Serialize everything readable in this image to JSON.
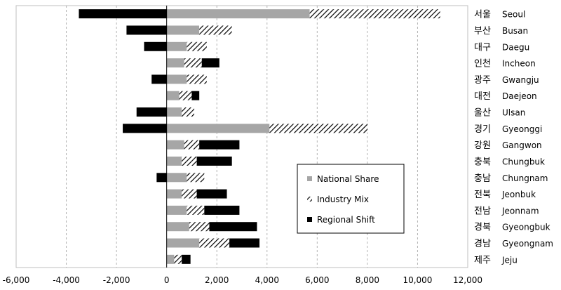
{
  "chart_data": {
    "type": "bar",
    "orientation": "horizontal",
    "stacked": true,
    "categories": [
      {
        "ko": "서울",
        "en": "Seoul"
      },
      {
        "ko": "부산",
        "en": "Busan"
      },
      {
        "ko": "대구",
        "en": "Daegu"
      },
      {
        "ko": "인천",
        "en": "Incheon"
      },
      {
        "ko": "광주",
        "en": "Gwangju"
      },
      {
        "ko": "대전",
        "en": "Daejeon"
      },
      {
        "ko": "울산",
        "en": "Ulsan"
      },
      {
        "ko": "경기",
        "en": "Gyeonggi"
      },
      {
        "ko": "강원",
        "en": "Gangwon"
      },
      {
        "ko": "충북",
        "en": "Chungbuk"
      },
      {
        "ko": "충남",
        "en": "Chungnam"
      },
      {
        "ko": "전북",
        "en": "Jeonbuk"
      },
      {
        "ko": "전남",
        "en": "Jeonnam"
      },
      {
        "ko": "경북",
        "en": "Gyeongbuk"
      },
      {
        "ko": "경남",
        "en": "Gyeongnam"
      },
      {
        "ko": "제주",
        "en": "Jeju"
      }
    ],
    "series": [
      {
        "name": "National Share",
        "color": "#a6a6a6",
        "pattern": "solid",
        "values": [
          5700,
          1300,
          800,
          700,
          800,
          500,
          600,
          4100,
          700,
          600,
          800,
          600,
          800,
          900,
          1300,
          300
        ]
      },
      {
        "name": "Industry Mix",
        "color": "#000000",
        "pattern": "diagonal-hatch",
        "values": [
          5200,
          1300,
          800,
          700,
          800,
          500,
          500,
          3900,
          600,
          600,
          700,
          600,
          700,
          800,
          1200,
          300
        ]
      },
      {
        "name": "Regional Shift",
        "color": "#000000",
        "pattern": "solid",
        "values": [
          -3500,
          -1600,
          -900,
          700,
          -600,
          300,
          -1200,
          -1750,
          1600,
          1400,
          -400,
          1200,
          1400,
          1900,
          1200,
          350
        ]
      }
    ],
    "xlim": [
      -6000,
      12000
    ],
    "xticks": [
      "-6,000",
      "-4,000",
      "-2,000",
      "0",
      "2,000",
      "4,000",
      "6,000",
      "8,000",
      "10,000",
      "12,000"
    ],
    "grid": "vertical dashed",
    "legend_position": "inside lower-right",
    "title": "",
    "xlabel": "",
    "ylabel": ""
  }
}
